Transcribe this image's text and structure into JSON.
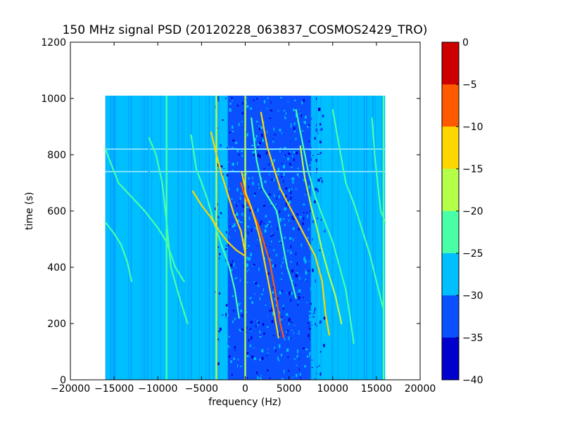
{
  "chart_data": {
    "type": "heatmap",
    "title": "150 MHz signal PSD (20120228_063837_COSMOS2429_TRO)",
    "xlabel": "frequency (Hz)",
    "ylabel": "time (s)",
    "xlim": [
      -20000,
      20000
    ],
    "ylim": [
      0,
      1200
    ],
    "x_ticks": [
      "−20000",
      "−15000",
      "−10000",
      "−5000",
      "0",
      "5000",
      "10000",
      "15000",
      "20000"
    ],
    "y_ticks": [
      "0",
      "200",
      "400",
      "600",
      "800",
      "1000",
      "1200"
    ],
    "data_extent": {
      "x": [
        -16000,
        16000
      ],
      "y": [
        0,
        1010
      ]
    },
    "background_level": -27.5,
    "dark_band": {
      "x": [
        -2000,
        7500
      ],
      "level": -32.5
    },
    "colorbar": {
      "range": [
        -40,
        0
      ],
      "ticks": [
        "0",
        "−5",
        "−10",
        "−15",
        "−20",
        "−25",
        "−30",
        "−35",
        "−40"
      ],
      "levels": [
        {
          "from": -40,
          "to": -35,
          "color": "#0000cd"
        },
        {
          "from": -35,
          "to": -30,
          "color": "#0a50ff"
        },
        {
          "from": -30,
          "to": -25,
          "color": "#00bfff"
        },
        {
          "from": -25,
          "to": -20,
          "color": "#48ffa8"
        },
        {
          "from": -20,
          "to": -15,
          "color": "#b4ff48"
        },
        {
          "from": -15,
          "to": -10,
          "color": "#ffd700"
        },
        {
          "from": -10,
          "to": -5,
          "color": "#ff5a00"
        },
        {
          "from": -5,
          "to": 0,
          "color": "#cd0000"
        }
      ]
    },
    "vertical_lines": [
      {
        "x": -11000,
        "level": -27.5
      },
      {
        "x": -9000,
        "level": -22.5
      },
      {
        "x": -3300,
        "level": -17.5
      },
      {
        "x": 0,
        "level": -17.5
      },
      {
        "x": 15800,
        "level": -22.5
      }
    ],
    "horizontal_lines": [
      {
        "y": 820,
        "level": -27.5
      },
      {
        "y": 740,
        "level": -27.5
      }
    ],
    "doppler_tracks": [
      {
        "points": [
          [
            -16000,
            820
          ],
          [
            -14500,
            700
          ],
          [
            -13000,
            650
          ],
          [
            -11500,
            600
          ],
          [
            -10000,
            540
          ],
          [
            -9000,
            490
          ],
          [
            -8000,
            400
          ],
          [
            -7000,
            350
          ]
        ],
        "level": -22.5
      },
      {
        "points": [
          [
            -16000,
            560
          ],
          [
            -15000,
            520
          ],
          [
            -14200,
            480
          ],
          [
            -13500,
            420
          ],
          [
            -13000,
            350
          ]
        ],
        "level": -22.5
      },
      {
        "points": [
          [
            -11000,
            860
          ],
          [
            -10200,
            800
          ],
          [
            -9500,
            700
          ],
          [
            -9000,
            560
          ],
          [
            -8500,
            400
          ],
          [
            -7600,
            300
          ],
          [
            -6600,
            200
          ]
        ],
        "level": -22.5
      },
      {
        "points": [
          [
            -6200,
            870
          ],
          [
            -5600,
            750
          ],
          [
            -5000,
            700
          ],
          [
            -4300,
            640
          ],
          [
            -3600,
            560
          ],
          [
            -2500,
            460
          ],
          [
            -1800,
            400
          ],
          [
            -1200,
            320
          ],
          [
            -700,
            220
          ]
        ],
        "level": -22.5
      },
      {
        "points": [
          [
            -3900,
            880
          ],
          [
            -3300,
            800
          ],
          [
            -2700,
            730
          ],
          [
            -2000,
            660
          ],
          [
            -1300,
            590
          ],
          [
            -500,
            530
          ],
          [
            0,
            450
          ]
        ],
        "level": -12.5
      },
      {
        "points": [
          [
            -6000,
            670
          ],
          [
            -5000,
            620
          ],
          [
            -4000,
            580
          ],
          [
            -3000,
            530
          ],
          [
            -2000,
            490
          ],
          [
            -1000,
            460
          ],
          [
            0,
            440
          ]
        ],
        "level": -12.5
      },
      {
        "points": [
          [
            -500,
            700
          ],
          [
            0,
            650
          ],
          [
            800,
            600
          ],
          [
            1500,
            550
          ],
          [
            2200,
            480
          ],
          [
            2800,
            420
          ],
          [
            3500,
            300
          ],
          [
            4000,
            200
          ],
          [
            4400,
            150
          ]
        ],
        "level": -7.5
      },
      {
        "points": [
          [
            -400,
            740
          ],
          [
            100,
            660
          ],
          [
            600,
            620
          ],
          [
            1200,
            560
          ],
          [
            1700,
            500
          ],
          [
            2200,
            420
          ],
          [
            2700,
            340
          ],
          [
            3300,
            240
          ],
          [
            3800,
            150
          ]
        ],
        "level": -12.5
      },
      {
        "points": [
          [
            700,
            930
          ],
          [
            1300,
            780
          ],
          [
            2000,
            680
          ],
          [
            2800,
            640
          ],
          [
            3600,
            600
          ],
          [
            4200,
            500
          ],
          [
            4800,
            400
          ],
          [
            5300,
            350
          ],
          [
            5800,
            290
          ]
        ],
        "level": -22.5
      },
      {
        "points": [
          [
            1800,
            950
          ],
          [
            2500,
            830
          ],
          [
            3300,
            750
          ],
          [
            4000,
            680
          ],
          [
            5000,
            620
          ],
          [
            6000,
            560
          ],
          [
            7000,
            500
          ],
          [
            8000,
            440
          ],
          [
            8800,
            350
          ],
          [
            9200,
            230
          ],
          [
            9600,
            160
          ]
        ],
        "level": -12.5
      },
      {
        "points": [
          [
            5800,
            960
          ],
          [
            6500,
            850
          ],
          [
            7200,
            740
          ],
          [
            8000,
            650
          ],
          [
            9000,
            570
          ],
          [
            10000,
            490
          ],
          [
            10800,
            400
          ],
          [
            11500,
            320
          ],
          [
            12000,
            220
          ],
          [
            12400,
            130
          ]
        ],
        "level": -22.5
      },
      {
        "points": [
          [
            10000,
            960
          ],
          [
            10800,
            820
          ],
          [
            11500,
            700
          ],
          [
            12500,
            620
          ],
          [
            13500,
            520
          ],
          [
            14300,
            440
          ],
          [
            15000,
            350
          ],
          [
            15800,
            250
          ]
        ],
        "level": -22.5
      },
      {
        "points": [
          [
            14500,
            930
          ],
          [
            14800,
            800
          ],
          [
            15200,
            680
          ],
          [
            15500,
            600
          ],
          [
            16000,
            560
          ]
        ],
        "level": -22.5
      },
      {
        "points": [
          [
            6300,
            830
          ],
          [
            6800,
            720
          ],
          [
            7500,
            620
          ],
          [
            8200,
            540
          ],
          [
            8800,
            460
          ],
          [
            9500,
            380
          ],
          [
            10300,
            300
          ],
          [
            11000,
            200
          ]
        ],
        "level": -17.5
      }
    ]
  }
}
